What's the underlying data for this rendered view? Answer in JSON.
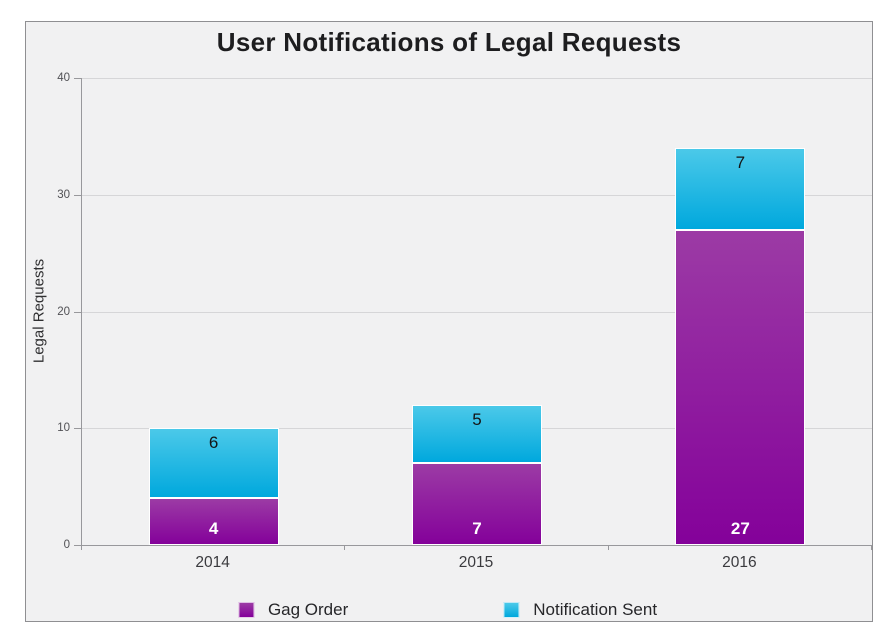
{
  "title": "User Notifications of Legal Requests",
  "y_axis": {
    "label": "Legal Requests",
    "ticks": [
      0,
      10,
      20,
      30,
      40
    ]
  },
  "x_axis": {
    "labels": [
      "2014",
      "2015",
      "2016"
    ]
  },
  "legend": {
    "items": [
      "Gag Order",
      "Notification Sent"
    ]
  },
  "colors": {
    "background": "#f1f1f2",
    "frame_border": "#8f8f92",
    "gridline": "#d6d6d8",
    "axis": "#98989c",
    "gag_order_top": "#9c3ba5",
    "gag_order_bottom": "#84019a",
    "notification_sent_top": "#4bc9e9",
    "notification_sent_bottom": "#00a8dd"
  },
  "chart_data": {
    "type": "bar",
    "stacked": true,
    "title": "User Notifications of Legal Requests",
    "xlabel": "",
    "ylabel": "Legal Requests",
    "categories": [
      "2014",
      "2015",
      "2016"
    ],
    "series": [
      {
        "name": "Gag Order",
        "values": [
          4,
          7,
          27
        ],
        "color_top": "#9c3ba5",
        "color_bottom": "#84019a",
        "label_color": "#ffffff",
        "label_bold": true,
        "label_position": "inside-bottom"
      },
      {
        "name": "Notification Sent",
        "values": [
          6,
          5,
          7
        ],
        "color_top": "#4bc9e9",
        "color_bottom": "#00a8dd",
        "label_color": "#141414",
        "label_bold": false,
        "label_position": "inside-top"
      }
    ],
    "totals": [
      10,
      12,
      34
    ],
    "ylim": [
      0,
      40
    ],
    "ytick_step": 10,
    "grid": true,
    "legend_position": "bottom"
  }
}
